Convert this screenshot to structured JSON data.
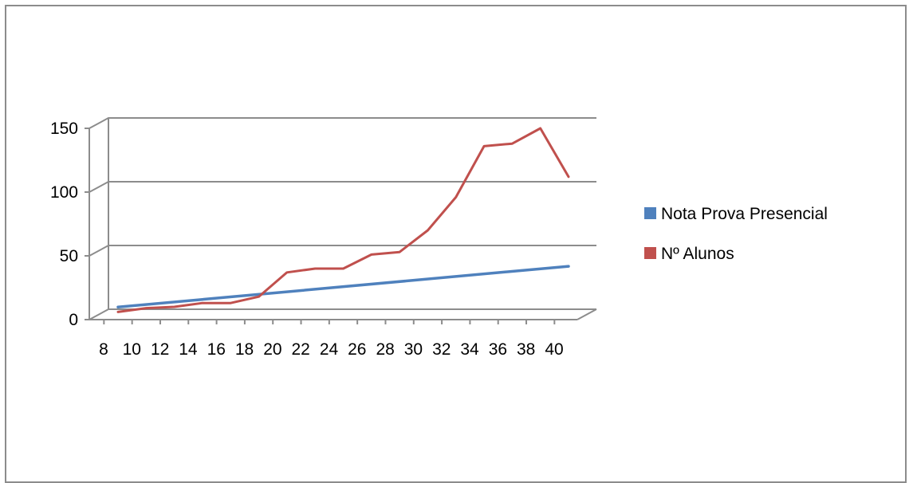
{
  "chart_data": {
    "type": "line",
    "title": "",
    "xlabel": "",
    "ylabel": "",
    "x": [
      8,
      10,
      12,
      14,
      16,
      18,
      20,
      22,
      24,
      26,
      28,
      30,
      32,
      34,
      36,
      38,
      40
    ],
    "x_tick_labels": [
      "8",
      "10",
      "12",
      "14",
      "16",
      "18",
      "20",
      "22",
      "24",
      "26",
      "28",
      "30",
      "32",
      "34",
      "36",
      "38",
      "40"
    ],
    "ylim": [
      0,
      150
    ],
    "y_ticks": [
      0,
      50,
      100,
      150
    ],
    "y_tick_labels": [
      "0",
      "50",
      "100",
      "150"
    ],
    "grid": true,
    "legend_position": "right",
    "series": [
      {
        "name": "Nota Prova Presencial",
        "color": "#4f81bd",
        "x": [
          8,
          40
        ],
        "values": [
          8,
          40
        ]
      },
      {
        "name": "Nº Alunos",
        "color": "#c0504d",
        "x": [
          8,
          10,
          12,
          14,
          16,
          18,
          20,
          22,
          24,
          26,
          28,
          30,
          32,
          34,
          36,
          38,
          40
        ],
        "values": [
          6,
          9,
          10,
          13,
          13,
          18,
          37,
          40,
          40,
          51,
          53,
          70,
          96,
          136,
          138,
          150,
          112
        ]
      }
    ]
  }
}
